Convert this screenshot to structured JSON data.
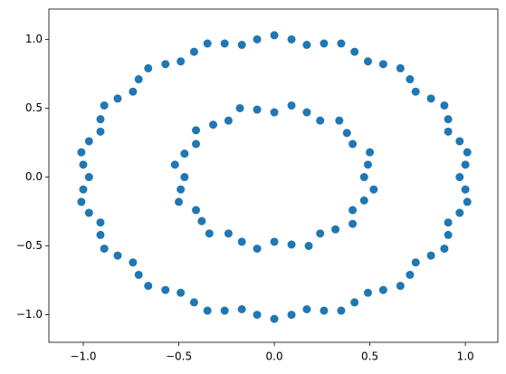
{
  "chart_data": {
    "type": "scatter",
    "color": "#1f77b4",
    "xlim": [
      -1.18,
      1.17
    ],
    "ylim": [
      -1.2,
      1.22
    ],
    "xticks": [
      {
        "value": -1,
        "label": "−1.0"
      },
      {
        "value": -0.5,
        "label": "−0.5"
      },
      {
        "value": 0,
        "label": "0.0"
      },
      {
        "value": 0.5,
        "label": "0.5"
      },
      {
        "value": 1,
        "label": "1.0"
      }
    ],
    "yticks": [
      {
        "value": -1,
        "label": "−1.0"
      },
      {
        "value": -0.5,
        "label": "−0.5"
      },
      {
        "value": 0,
        "label": "0.0"
      },
      {
        "value": 0.5,
        "label": "0.5"
      },
      {
        "value": 1,
        "label": "1.0"
      }
    ],
    "x": [
      0.97,
      1.0,
      1.01,
      0.97,
      0.91,
      0.91,
      0.89,
      0.82,
      0.74,
      0.71,
      0.66,
      0.57,
      0.49,
      0.42,
      0.35,
      0.26,
      0.17,
      0.09,
      0.0,
      -0.09,
      -0.17,
      -0.26,
      -0.35,
      -0.42,
      -0.49,
      -0.57,
      -0.66,
      -0.71,
      -0.74,
      -0.82,
      -0.89,
      -0.91,
      -0.91,
      -0.97,
      -1.01,
      -1.0,
      -0.97,
      -1.0,
      -1.01,
      -0.97,
      -0.91,
      -0.91,
      -0.89,
      -0.82,
      -0.74,
      -0.71,
      -0.66,
      -0.57,
      -0.49,
      -0.42,
      -0.35,
      -0.26,
      -0.17,
      -0.09,
      0.0,
      0.09,
      0.17,
      0.26,
      0.35,
      0.42,
      0.49,
      0.57,
      0.66,
      0.71,
      0.74,
      0.82,
      0.89,
      0.91,
      0.91,
      0.97,
      1.01,
      1.0,
      0.47,
      0.49,
      0.5,
      0.41,
      0.38,
      0.34,
      0.24,
      0.17,
      0.09,
      0.0,
      -0.09,
      -0.18,
      -0.24,
      -0.32,
      -0.41,
      -0.41,
      -0.47,
      -0.52,
      -0.47,
      -0.49,
      -0.5,
      -0.41,
      -0.38,
      -0.34,
      -0.24,
      -0.17,
      -0.09,
      0.0,
      0.09,
      0.18,
      0.24,
      0.32,
      0.41,
      0.41,
      0.47,
      0.52
    ],
    "values": [
      0.0,
      0.09,
      0.18,
      0.26,
      0.33,
      0.42,
      0.52,
      0.57,
      0.62,
      0.71,
      0.79,
      0.82,
      0.84,
      0.91,
      0.97,
      0.97,
      0.96,
      1.0,
      1.03,
      1.0,
      0.96,
      0.97,
      0.97,
      0.91,
      0.84,
      0.82,
      0.79,
      0.71,
      0.62,
      0.57,
      0.52,
      0.42,
      0.33,
      0.26,
      0.18,
      0.09,
      0.0,
      -0.09,
      -0.18,
      -0.26,
      -0.33,
      -0.42,
      -0.52,
      -0.57,
      -0.62,
      -0.71,
      -0.79,
      -0.82,
      -0.84,
      -0.91,
      -0.97,
      -0.97,
      -0.96,
      -1.0,
      -1.03,
      -1.0,
      -0.96,
      -0.97,
      -0.97,
      -0.91,
      -0.84,
      -0.82,
      -0.79,
      -0.71,
      -0.62,
      -0.57,
      -0.52,
      -0.42,
      -0.33,
      -0.26,
      -0.18,
      -0.09,
      0.0,
      0.09,
      0.18,
      0.24,
      0.32,
      0.41,
      0.41,
      0.47,
      0.52,
      0.47,
      0.49,
      0.5,
      0.41,
      0.38,
      0.34,
      0.24,
      0.17,
      0.09,
      0.0,
      -0.09,
      -0.18,
      -0.24,
      -0.32,
      -0.41,
      -0.41,
      -0.47,
      -0.52,
      -0.47,
      -0.49,
      -0.5,
      -0.41,
      -0.38,
      -0.34,
      -0.24,
      -0.17,
      -0.09
    ]
  }
}
